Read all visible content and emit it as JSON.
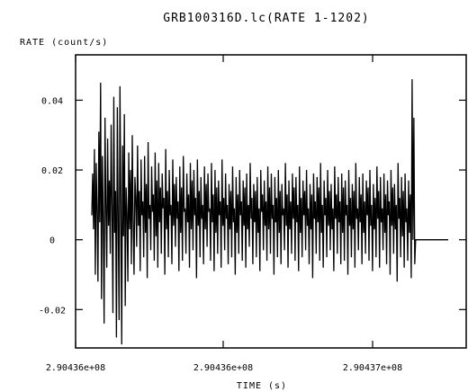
{
  "chart_data": {
    "type": "line",
    "title": "GRB100316D.lc(RATE 1-1202)",
    "xlabel": "TIME (s)",
    "ylabel": "RATE (count/s)",
    "x_tick_labels": [
      "2.90436e+08",
      "2.90436e+08",
      "2.90437e+08"
    ],
    "y_ticks": [
      -0.02,
      0,
      0.02,
      0.04
    ],
    "y_tick_labels": [
      "-0.02",
      "0",
      "0.02",
      "0.04"
    ],
    "ylim": [
      -0.031,
      0.053
    ],
    "xlim_fraction_note": "",
    "grid": false,
    "legend": "none",
    "line_color": "#000000",
    "series": [
      {
        "name": "",
        "values": [
          0.007,
          0.019,
          0.003,
          0.026,
          -0.01,
          0.022,
          0.008,
          -0.012,
          0.031,
          0.005,
          0.045,
          -0.017,
          0.024,
          0.006,
          -0.024,
          0.035,
          0.01,
          -0.008,
          0.029,
          0.004,
          0.017,
          -0.004,
          0.033,
          0.009,
          -0.021,
          0.041,
          0.002,
          0.014,
          -0.028,
          0.038,
          0.006,
          -0.023,
          0.044,
          0.011,
          -0.03,
          0.027,
          0.001,
          0.036,
          -0.019,
          0.015,
          0.008,
          -0.012,
          0.025,
          0.003,
          0.02,
          -0.007,
          0.03,
          0.005,
          -0.01,
          0.018,
          0.012,
          -0.002,
          0.027,
          0.004,
          0.014,
          -0.009,
          0.023,
          0.007,
          0.011,
          -0.005,
          0.024,
          0.002,
          0.016,
          -0.011,
          0.028,
          0.006,
          0.01,
          -0.003,
          0.021,
          0.008,
          0.013,
          -0.006,
          0.025,
          0.001,
          0.017,
          -0.008,
          0.022,
          0.005,
          0.015,
          -0.004,
          0.019,
          0.009,
          0.012,
          -0.01,
          0.026,
          0.003,
          0.014,
          -0.005,
          0.02,
          0.007,
          0.01,
          -0.007,
          0.023,
          0.004,
          0.016,
          -0.002,
          0.018,
          0.006,
          0.011,
          -0.009,
          0.021,
          0.002,
          0.015,
          -0.006,
          0.024,
          0.008,
          0.009,
          -0.004,
          0.019,
          0.005,
          0.013,
          -0.008,
          0.022,
          0.003,
          0.017,
          -0.003,
          0.02,
          0.007,
          0.012,
          -0.011,
          0.023,
          0.004,
          0.014,
          -0.005,
          0.018,
          0.006,
          0.01,
          -0.007,
          0.021,
          0.003,
          0.016,
          -0.002,
          0.019,
          0.008,
          0.009,
          -0.006,
          0.022,
          0.005,
          0.013,
          -0.009,
          0.02,
          0.002,
          0.015,
          -0.004,
          0.017,
          0.007,
          0.011,
          -0.008,
          0.023,
          0.004,
          0.012,
          -0.003,
          0.019,
          0.006,
          0.01,
          -0.007,
          0.016,
          0.003,
          0.014,
          -0.005,
          0.021,
          0.005,
          0.009,
          -0.01,
          0.018,
          0.002,
          0.013,
          -0.004,
          0.02,
          0.007,
          0.011,
          -0.006,
          0.017,
          0.004,
          0.015,
          -0.008,
          0.019,
          0.003,
          0.01,
          -0.002,
          0.022,
          0.006,
          0.012,
          -0.007,
          0.016,
          0.005,
          0.014,
          -0.005,
          0.018,
          0.002,
          0.009,
          -0.009,
          0.02,
          0.008,
          0.013,
          -0.003,
          0.017,
          0.004,
          0.011,
          -0.006,
          0.021,
          0.003,
          0.015,
          -0.004,
          0.019,
          0.006,
          0.01,
          -0.01,
          0.018,
          0.005,
          0.012,
          -0.005,
          0.02,
          0.002,
          0.014,
          -0.007,
          0.016,
          0.007,
          0.009,
          -0.003,
          0.022,
          0.004,
          0.013,
          -0.008,
          0.017,
          0.003,
          0.011,
          -0.004,
          0.019,
          0.006,
          0.015,
          -0.006,
          0.018,
          0.005,
          0.01,
          -0.009,
          0.021,
          0.002,
          0.012,
          -0.005,
          0.017,
          0.007,
          0.014,
          -0.003,
          0.02,
          0.004,
          0.009,
          -0.007,
          0.016,
          0.003,
          0.013,
          -0.011,
          0.019,
          0.006,
          0.011,
          -0.004,
          0.018,
          0.005,
          0.015,
          -0.006,
          0.022,
          0.002,
          0.01,
          -0.008,
          0.017,
          0.007,
          0.012,
          -0.005,
          0.02,
          0.004,
          0.014,
          -0.003,
          0.016,
          0.003,
          0.009,
          -0.009,
          0.021,
          0.006,
          0.013,
          -0.004,
          0.018,
          0.005,
          0.011,
          -0.007,
          0.019,
          0.002,
          0.015,
          -0.006,
          0.017,
          0.007,
          0.01,
          -0.01,
          0.02,
          0.004,
          0.012,
          -0.005,
          0.016,
          0.003,
          0.014,
          -0.008,
          0.022,
          0.006,
          0.009,
          -0.003,
          0.018,
          0.005,
          0.013,
          -0.007,
          0.019,
          0.002,
          0.011,
          -0.004,
          0.017,
          0.007,
          0.015,
          -0.006,
          0.02,
          0.004,
          0.01,
          -0.009,
          0.016,
          0.003,
          0.012,
          -0.005,
          0.021,
          0.006,
          0.014,
          -0.008,
          0.018,
          0.005,
          0.009,
          -0.003,
          0.019,
          0.002,
          0.013,
          -0.007,
          0.017,
          0.007,
          0.011,
          -0.01,
          0.02,
          0.004,
          0.015,
          -0.004,
          0.016,
          0.003,
          0.01,
          -0.012,
          0.022,
          0.006,
          0.012,
          -0.005,
          0.018,
          0.001,
          0.014,
          -0.008,
          0.019,
          0.005,
          0.009,
          -0.006,
          0.017,
          0.002,
          0.013,
          -0.011,
          0.046,
          0.0,
          0.035,
          -0.007,
          0.0,
          0.0,
          0.0,
          0.0,
          0.0,
          0.0,
          0.0,
          0.0,
          0.0,
          0.0,
          0.0,
          0.0,
          0.0,
          0.0,
          0.0,
          0.0,
          0.0,
          0.0,
          0.0,
          0.0,
          0.0,
          0.0,
          0.0,
          0.0,
          0.0,
          0.0,
          0.0,
          0.0,
          0.0,
          0.0,
          0.0,
          0.0,
          0.0,
          0.0,
          0.0,
          0.0,
          0.0,
          0.0
        ]
      }
    ]
  }
}
